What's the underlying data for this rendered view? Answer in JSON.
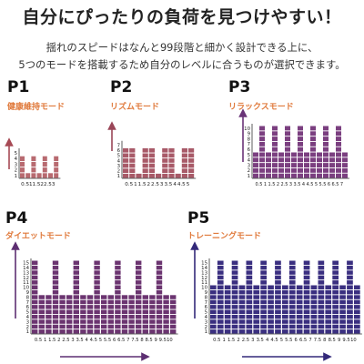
{
  "headline": "自分にぴったりの負荷を見つけやすい！",
  "description": {
    "line1": "揺れのスピードはなんと99段階と細かく設計できる上に、",
    "line2": "5つのモードを搭載するため自分のレベルに合うものが選択できます。"
  },
  "colors": {
    "p1_fill": "#b86a70",
    "p1_label": "#e07a3c",
    "p1_arrow": "#a74a55",
    "p2_fill": "#a85a68",
    "p2_label": "#e07a3c",
    "p2_arrow": "#9a4658",
    "p3_fill": "#7b3f80",
    "p3_label": "#e07a3c",
    "p3_arrow": "#6a3478",
    "p4_fill": "#6b3470",
    "p4_label": "#e07a3c",
    "p4_arrow": "#5d2f72",
    "p5_fill": "#3a2f80",
    "p5_label": "#e07a3c",
    "p5_arrow": "#33297a"
  },
  "chart_data": [
    {
      "type": "bar",
      "code": "P1",
      "mode": "健康維持モード",
      "categories": [
        "0",
        "0.5",
        "1",
        "1.5",
        "2",
        "2.5",
        "3"
      ],
      "tick_labels": [
        "0.5",
        "1",
        "1.5",
        "2",
        "2.5",
        "3"
      ],
      "y_ticks": [
        1,
        2,
        3,
        4,
        5
      ],
      "ymax": 5,
      "values": [
        4,
        1,
        4,
        1,
        4,
        1,
        4
      ]
    },
    {
      "type": "bar",
      "code": "P2",
      "mode": "リズムモード",
      "categories": [
        "0",
        "0.5",
        "1",
        "1.5",
        "2",
        "2.5",
        "3",
        "3.5",
        "4",
        "4.5",
        "5"
      ],
      "tick_labels": [
        "0.5",
        "1",
        "1.5",
        "2",
        "2.5",
        "3",
        "3.5",
        "4",
        "4.5",
        "5"
      ],
      "y_ticks": [
        1,
        2,
        3,
        4,
        5,
        6,
        7
      ],
      "ymax": 7,
      "values": [
        6,
        6,
        1,
        6,
        6,
        1,
        6,
        6,
        1,
        6,
        6
      ]
    },
    {
      "type": "bar",
      "code": "P3",
      "mode": "リラックスモード",
      "categories": [
        "0",
        "0.5",
        "1",
        "1.5",
        "2",
        "2.5",
        "3",
        "3.5",
        "4",
        "4.5",
        "5",
        "5.5",
        "6",
        "6.5",
        "7"
      ],
      "tick_labels": [
        "0.5",
        "1",
        "1.5",
        "2",
        "2.5",
        "3",
        "3.5",
        "4",
        "4.5",
        "5",
        "5.5",
        "6",
        "6.5",
        "7"
      ],
      "y_ticks": [
        1,
        2,
        3,
        4,
        5,
        6,
        7,
        8,
        9,
        10
      ],
      "ymax": 10,
      "values": [
        5,
        10,
        5,
        10,
        5,
        10,
        5,
        10,
        5,
        10,
        5,
        10,
        5,
        10,
        5
      ]
    },
    {
      "type": "bar",
      "code": "P4",
      "mode": "ダイエットモード",
      "categories": [
        "0",
        "0.5",
        "1",
        "1.5",
        "2",
        "2.5",
        "3",
        "3.5",
        "4",
        "4.5",
        "5",
        "5.5",
        "6",
        "6.5",
        "7",
        "7.5",
        "8",
        "8.5",
        "9",
        "9.5",
        "10"
      ],
      "tick_labels": [
        "0.5",
        "1",
        "1.5",
        "2",
        "2.5",
        "3",
        "3.5",
        "4",
        "4.5",
        "5",
        "5.5",
        "6",
        "6.5",
        "7",
        "7.5",
        "8",
        "8.5",
        "9",
        "9.5",
        "10"
      ],
      "y_ticks": [
        1,
        2,
        3,
        4,
        5,
        6,
        7,
        8,
        9,
        10,
        11,
        12,
        13,
        14,
        15
      ],
      "ymax": 15,
      "values": [
        15,
        8,
        8,
        15,
        8,
        8,
        15,
        8,
        8,
        15,
        8,
        8,
        15,
        8,
        8,
        15,
        8,
        8,
        15,
        8,
        8
      ]
    },
    {
      "type": "bar",
      "code": "P5",
      "mode": "トレーニングモード",
      "categories": [
        "0",
        "0.5",
        "1",
        "1.5",
        "2",
        "2.5",
        "3",
        "3.5",
        "4",
        "4.5",
        "5",
        "5.5",
        "6",
        "6.5",
        "7",
        "7.5",
        "8",
        "8.5",
        "9",
        "9.5",
        "10"
      ],
      "tick_labels": [
        "0.5",
        "1",
        "1.5",
        "2",
        "2.5",
        "3",
        "3.5",
        "4",
        "4.5",
        "5",
        "5.5",
        "6",
        "6.5",
        "7",
        "7.5",
        "8",
        "8.5",
        "9",
        "9.5",
        "10"
      ],
      "y_ticks": [
        1,
        2,
        3,
        4,
        5,
        6,
        7,
        8,
        9,
        10,
        11,
        12,
        13,
        14,
        15
      ],
      "ymax": 15,
      "values": [
        10,
        15,
        10,
        15,
        10,
        15,
        10,
        15,
        10,
        15,
        10,
        15,
        10,
        15,
        10,
        15,
        10,
        15,
        10,
        15,
        10
      ]
    }
  ]
}
